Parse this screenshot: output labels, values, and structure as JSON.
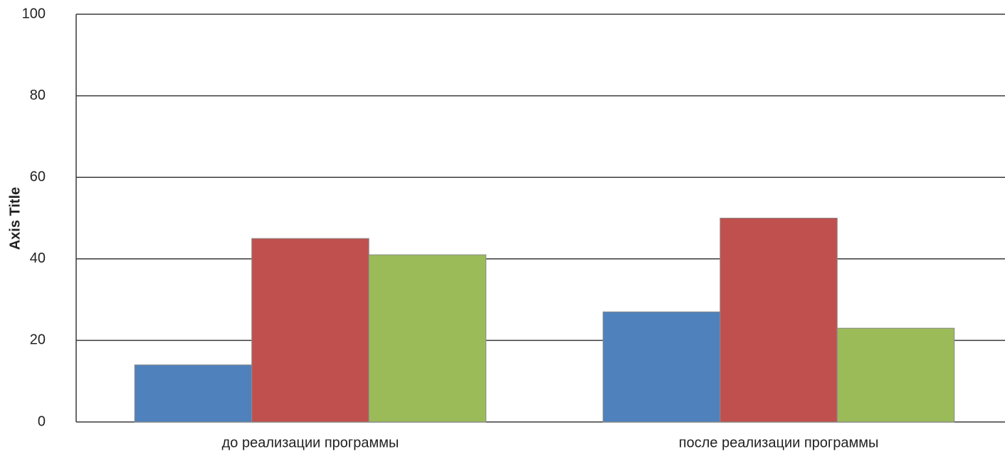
{
  "chart_data": {
    "type": "bar",
    "y_label": "Axis Title",
    "categories": [
      "до реализации программы",
      "после реализации программы"
    ],
    "series": [
      {
        "color": "#4f81bd",
        "values": [
          14,
          27
        ]
      },
      {
        "color": "#c0504d",
        "values": [
          45,
          50
        ]
      },
      {
        "color": "#9bbb59",
        "values": [
          41,
          23
        ]
      }
    ],
    "ylim": [
      0,
      100
    ],
    "yticks": [
      0,
      20,
      40,
      60,
      80,
      100
    ],
    "grid": true
  }
}
